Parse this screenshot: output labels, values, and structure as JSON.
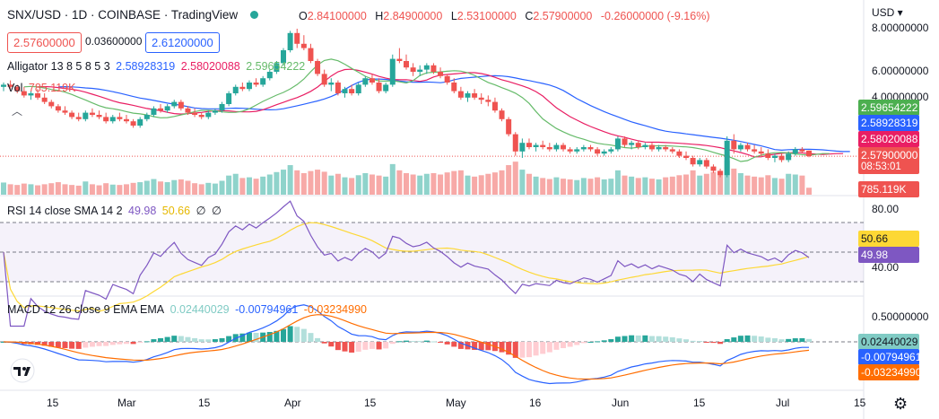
{
  "header": {
    "symbol": "SNX/USD",
    "interval": "1D",
    "exchange": "COINBASE",
    "platform": "TradingView",
    "status_color": "#26a69a",
    "ohlc": [
      {
        "key": "O",
        "value": "2.84100000"
      },
      {
        "key": "H",
        "value": "2.84900000"
      },
      {
        "key": "L",
        "value": "2.53100000"
      },
      {
        "key": "C",
        "value": "2.57900000"
      }
    ],
    "change": "-0.26000000 (-9.16%)"
  },
  "trade": {
    "sell_price": "2.57600000",
    "spread": "0.03600000",
    "buy_price": "2.61200000"
  },
  "indicators": {
    "alligator": {
      "label": "Alligator 13 8 5 8 5 3",
      "jaw": "2.58928319",
      "teeth": "2.58020088",
      "lips": "2.59654222"
    },
    "volume": {
      "label": "Vol",
      "value": "785.119K"
    },
    "rsi": {
      "label": "RSI 14 close SMA 14 2",
      "rsi": "49.98",
      "sma": "50.66",
      "extra1": "∅",
      "extra2": "∅"
    },
    "macd": {
      "label": "MACD 12 26 close 9 EMA EMA",
      "hist": "0.02440029",
      "macd": "-0.00794961",
      "signal": "-0.03234990"
    }
  },
  "price_axis": {
    "currency": "USD",
    "ticks": [
      "8.00000000",
      "6.00000000",
      "4.00000000"
    ],
    "badges": {
      "lips": "2.59654222",
      "jaw": "2.58928319",
      "teeth": "2.58020088",
      "last": "2.57900000",
      "countdown": "08:53:01",
      "volume": "785.119K"
    }
  },
  "rsi_axis": {
    "ticks": [
      "80.00",
      "40.00"
    ],
    "badges": {
      "sma": "50.66",
      "rsi": "49.98"
    }
  },
  "macd_axis": {
    "ticks": [
      "0.50000000"
    ],
    "badges": {
      "hist": "0.02440029",
      "macd": "-0.00794961",
      "signal": "-0.03234990"
    }
  },
  "time_axis": {
    "labels": [
      "15",
      "Mar",
      "15",
      "Apr",
      "15",
      "May",
      "16",
      "Jun",
      "15",
      "Jul",
      "15"
    ]
  },
  "colors": {
    "up": "#26a69a",
    "down": "#ef5350",
    "jaw": "#2962ff",
    "teeth": "#e91e63",
    "lips": "#66bb6a",
    "rsi": "#7e57c2",
    "rsi_sma": "#fdd835",
    "macd": "#2962ff",
    "signal": "#ff6d00"
  },
  "chart_data": {
    "type": "candlestick",
    "title": "SNX/USD · 1D · COINBASE",
    "ylim": [
      1.0,
      9.0
    ],
    "ohlc": [
      [
        5.8,
        6.0,
        5.6,
        5.9
      ],
      [
        5.9,
        6.1,
        5.7,
        5.8
      ],
      [
        5.8,
        5.9,
        5.5,
        5.6
      ],
      [
        5.6,
        5.8,
        5.3,
        5.4
      ],
      [
        5.4,
        5.6,
        5.2,
        5.5
      ],
      [
        5.5,
        5.7,
        5.2,
        5.3
      ],
      [
        5.3,
        5.5,
        5.0,
        5.1
      ],
      [
        5.1,
        5.2,
        4.8,
        4.9
      ],
      [
        4.9,
        5.0,
        4.6,
        4.7
      ],
      [
        4.7,
        4.9,
        4.5,
        4.6
      ],
      [
        4.6,
        4.7,
        4.3,
        4.4
      ],
      [
        4.4,
        4.6,
        4.2,
        4.3
      ],
      [
        4.3,
        4.7,
        4.2,
        4.6
      ],
      [
        4.6,
        4.8,
        4.4,
        4.5
      ],
      [
        4.5,
        4.7,
        4.3,
        4.4
      ],
      [
        4.4,
        4.6,
        4.1,
        4.2
      ],
      [
        4.2,
        4.5,
        4.1,
        4.4
      ],
      [
        4.4,
        4.6,
        4.2,
        4.3
      ],
      [
        4.3,
        4.5,
        4.1,
        4.2
      ],
      [
        4.2,
        4.3,
        3.9,
        4.0
      ],
      [
        4.0,
        4.4,
        3.9,
        4.3
      ],
      [
        4.3,
        4.6,
        4.2,
        4.5
      ],
      [
        4.5,
        4.9,
        4.4,
        4.8
      ],
      [
        4.8,
        5.0,
        4.6,
        4.7
      ],
      [
        4.7,
        5.0,
        4.6,
        4.9
      ],
      [
        4.9,
        5.2,
        4.8,
        5.1
      ],
      [
        5.1,
        5.2,
        4.7,
        4.8
      ],
      [
        4.8,
        4.9,
        4.5,
        4.6
      ],
      [
        4.6,
        4.8,
        4.4,
        4.5
      ],
      [
        4.5,
        4.6,
        4.3,
        4.4
      ],
      [
        4.4,
        4.7,
        4.3,
        4.6
      ],
      [
        4.6,
        4.8,
        4.5,
        4.7
      ],
      [
        4.7,
        5.1,
        4.6,
        5.0
      ],
      [
        5.0,
        5.6,
        4.9,
        5.5
      ],
      [
        5.5,
        5.9,
        5.4,
        5.8
      ],
      [
        5.8,
        6.0,
        5.6,
        5.7
      ],
      [
        5.7,
        6.1,
        5.6,
        6.0
      ],
      [
        6.0,
        6.2,
        5.8,
        5.9
      ],
      [
        5.9,
        6.3,
        5.8,
        6.2
      ],
      [
        6.2,
        6.6,
        6.1,
        6.5
      ],
      [
        6.5,
        7.0,
        6.4,
        6.9
      ],
      [
        6.9,
        7.6,
        6.8,
        7.5
      ],
      [
        7.5,
        8.4,
        7.4,
        8.3
      ],
      [
        8.3,
        8.5,
        7.6,
        7.8
      ],
      [
        7.8,
        8.2,
        7.5,
        7.6
      ],
      [
        7.6,
        7.8,
        6.9,
        7.0
      ],
      [
        7.0,
        7.1,
        6.3,
        6.4
      ],
      [
        6.4,
        6.6,
        5.8,
        5.9
      ],
      [
        5.9,
        6.2,
        5.6,
        6.0
      ],
      [
        6.0,
        6.1,
        5.4,
        5.5
      ],
      [
        5.5,
        5.8,
        5.3,
        5.7
      ],
      [
        5.7,
        5.9,
        5.4,
        5.5
      ],
      [
        5.5,
        6.0,
        5.4,
        5.9
      ],
      [
        5.9,
        6.3,
        5.8,
        6.2
      ],
      [
        6.2,
        6.4,
        5.9,
        6.0
      ],
      [
        6.0,
        6.2,
        5.5,
        5.6
      ],
      [
        5.6,
        6.0,
        5.5,
        5.9
      ],
      [
        5.9,
        7.3,
        5.8,
        7.1
      ],
      [
        7.1,
        7.6,
        6.9,
        7.0
      ],
      [
        7.0,
        7.3,
        6.6,
        6.7
      ],
      [
        6.7,
        6.9,
        6.3,
        6.5
      ],
      [
        6.5,
        6.8,
        6.3,
        6.6
      ],
      [
        6.6,
        6.9,
        6.4,
        6.8
      ],
      [
        6.8,
        6.9,
        6.4,
        6.5
      ],
      [
        6.5,
        6.7,
        6.2,
        6.3
      ],
      [
        6.3,
        6.4,
        5.9,
        6.0
      ],
      [
        6.0,
        6.2,
        5.5,
        5.6
      ],
      [
        5.6,
        5.8,
        5.2,
        5.3
      ],
      [
        5.3,
        5.6,
        5.1,
        5.5
      ],
      [
        5.5,
        5.7,
        5.2,
        5.3
      ],
      [
        5.3,
        5.5,
        5.0,
        5.2
      ],
      [
        5.2,
        5.4,
        4.9,
        5.1
      ],
      [
        5.1,
        5.3,
        4.6,
        4.7
      ],
      [
        4.7,
        4.8,
        4.2,
        4.3
      ],
      [
        4.3,
        4.4,
        3.5,
        3.6
      ],
      [
        3.6,
        3.7,
        2.6,
        2.8
      ],
      [
        2.8,
        3.4,
        2.5,
        3.2
      ],
      [
        3.2,
        3.4,
        2.9,
        3.0
      ],
      [
        3.0,
        3.2,
        2.8,
        3.1
      ],
      [
        3.1,
        3.3,
        2.9,
        3.0
      ],
      [
        3.0,
        3.2,
        2.8,
        2.9
      ],
      [
        2.9,
        3.2,
        2.8,
        3.1
      ],
      [
        3.1,
        3.2,
        2.8,
        2.9
      ],
      [
        2.9,
        3.0,
        2.7,
        2.8
      ],
      [
        2.8,
        3.0,
        2.7,
        2.9
      ],
      [
        2.9,
        3.1,
        2.8,
        3.0
      ],
      [
        3.0,
        3.1,
        2.8,
        2.9
      ],
      [
        2.9,
        3.0,
        2.6,
        2.7
      ],
      [
        2.7,
        2.9,
        2.6,
        2.8
      ],
      [
        2.8,
        3.0,
        2.7,
        2.9
      ],
      [
        2.9,
        3.5,
        2.8,
        3.4
      ],
      [
        3.4,
        3.5,
        3.0,
        3.1
      ],
      [
        3.1,
        3.3,
        2.9,
        3.2
      ],
      [
        3.2,
        3.3,
        2.9,
        3.0
      ],
      [
        3.0,
        3.2,
        2.9,
        3.1
      ],
      [
        3.1,
        3.2,
        2.8,
        2.9
      ],
      [
        2.9,
        3.1,
        2.8,
        3.0
      ],
      [
        3.0,
        3.1,
        2.8,
        2.9
      ],
      [
        2.9,
        3.0,
        2.7,
        2.8
      ],
      [
        2.8,
        2.9,
        2.5,
        2.6
      ],
      [
        2.6,
        2.8,
        2.4,
        2.5
      ],
      [
        2.5,
        2.6,
        2.1,
        2.2
      ],
      [
        2.2,
        2.5,
        2.1,
        2.4
      ],
      [
        2.4,
        2.5,
        2.0,
        2.1
      ],
      [
        2.1,
        2.2,
        1.8,
        1.9
      ],
      [
        1.9,
        2.0,
        1.6,
        1.7
      ],
      [
        1.7,
        3.5,
        1.6,
        3.3
      ],
      [
        3.3,
        3.6,
        2.7,
        2.9
      ],
      [
        2.9,
        3.2,
        2.8,
        3.1
      ],
      [
        3.1,
        3.2,
        2.8,
        2.9
      ],
      [
        2.9,
        3.1,
        2.7,
        2.8
      ],
      [
        2.8,
        3.0,
        2.6,
        2.7
      ],
      [
        2.7,
        2.9,
        2.4,
        2.5
      ],
      [
        2.5,
        2.7,
        2.3,
        2.6
      ],
      [
        2.6,
        2.7,
        2.3,
        2.4
      ],
      [
        2.4,
        2.8,
        2.3,
        2.7
      ],
      [
        2.7,
        3.0,
        2.6,
        2.9
      ],
      [
        2.9,
        3.0,
        2.7,
        2.8
      ],
      [
        2.84,
        2.85,
        2.53,
        2.58
      ]
    ],
    "volume": [
      35,
      30,
      28,
      32,
      30,
      27,
      30,
      33,
      36,
      30,
      28,
      26,
      38,
      30,
      27,
      33,
      29,
      28,
      30,
      34,
      36,
      40,
      45,
      38,
      36,
      42,
      44,
      40,
      33,
      30,
      34,
      32,
      40,
      55,
      60,
      48,
      50,
      46,
      52,
      58,
      65,
      72,
      85,
      70,
      62,
      68,
      72,
      66,
      55,
      60,
      50,
      48,
      56,
      62,
      58,
      55,
      52,
      88,
      70,
      62,
      58,
      55,
      60,
      62,
      58,
      64,
      68,
      70,
      55,
      52,
      56,
      60,
      64,
      70,
      85,
      95,
      72,
      60,
      52,
      48,
      45,
      50,
      46,
      44,
      42,
      48,
      46,
      50,
      44,
      46,
      70,
      55,
      52,
      48,
      50,
      46,
      44,
      50,
      52,
      56,
      58,
      70,
      55,
      60,
      65,
      68,
      98,
      75,
      62,
      55,
      52,
      50,
      56,
      48,
      46,
      60,
      58,
      55,
      20
    ]
  }
}
